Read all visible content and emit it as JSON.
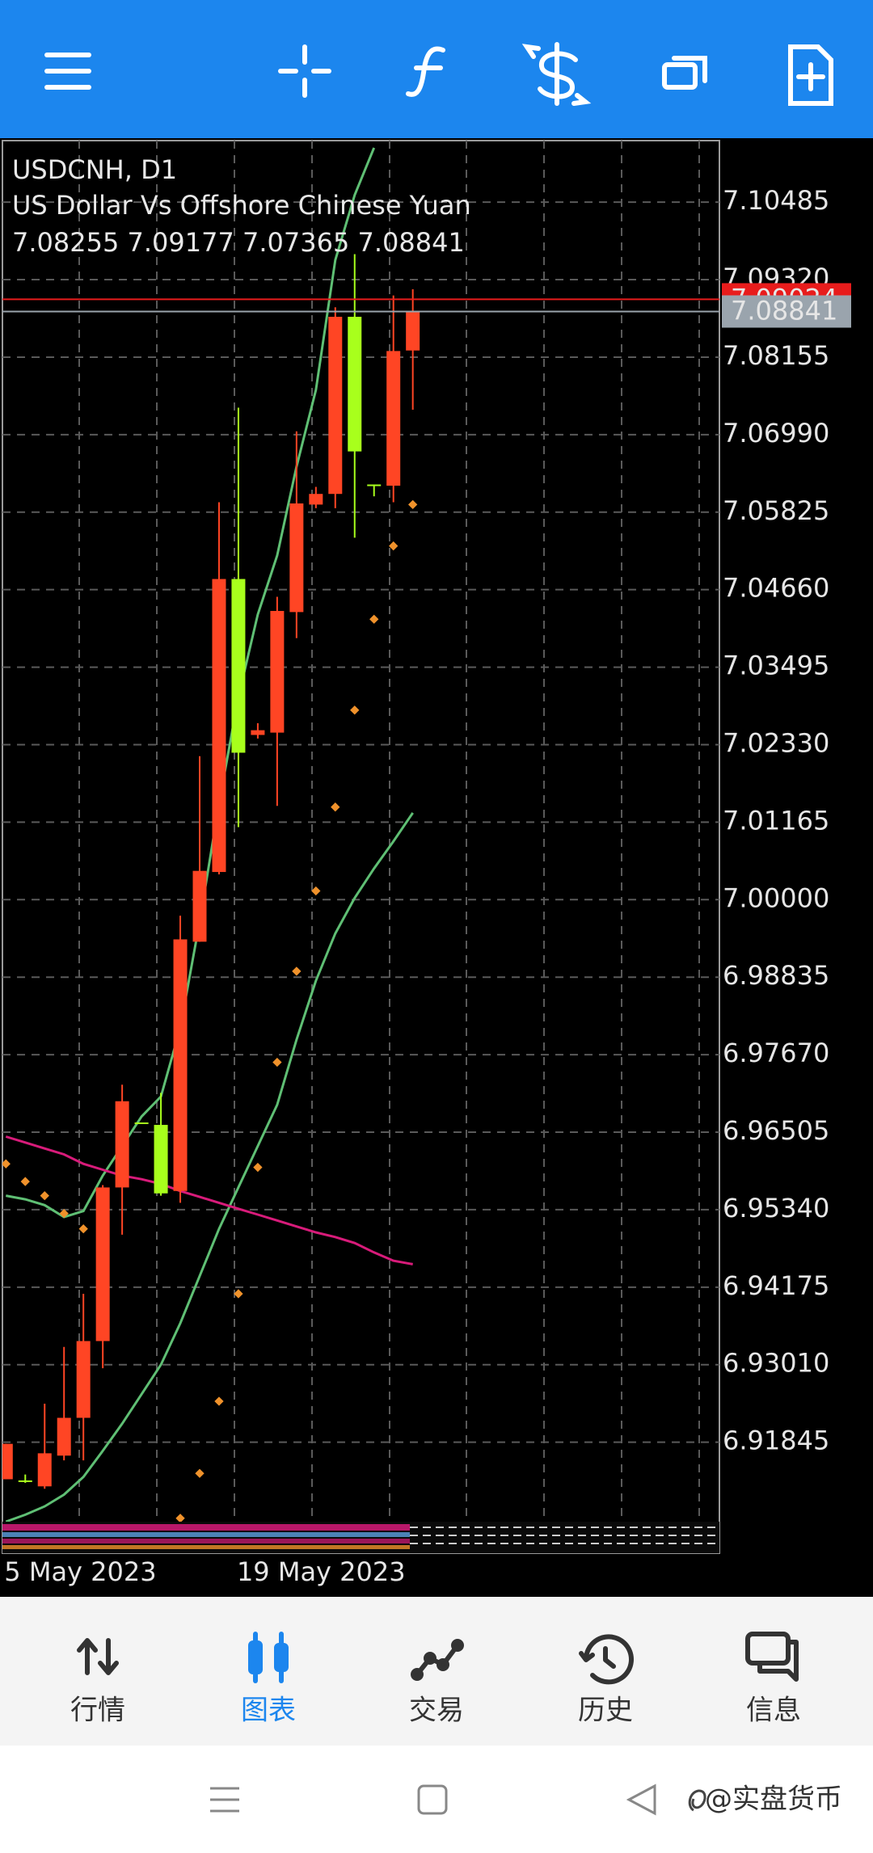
{
  "chart_data": {
    "type": "candlestick",
    "title": "USDCNH, D1",
    "subtitle": "US Dollar Vs Offshore Chinese Yuan",
    "ohlc_label": "7.08255 7.09177 7.07365 7.08841",
    "categories": [
      "5 May 2023",
      null,
      null,
      null,
      null,
      null,
      null,
      null,
      null,
      null,
      null,
      null,
      "19 May 2023",
      null,
      null,
      null,
      null,
      null,
      null,
      null,
      null,
      null
    ],
    "open": [
      6.91288,
      6.9127,
      6.91181,
      6.91643,
      6.92211,
      6.93365,
      6.95674,
      6.96651,
      6.96615,
      6.95621,
      6.99368,
      7.00416,
      7.0482,
      7.02476,
      7.02511,
      7.04323,
      7.05939,
      7.06099,
      7.08762,
      7.06241,
      7.06223,
      7.08255
    ],
    "high": [
      6.9182,
      6.91359,
      6.92424,
      6.93277,
      6.94076,
      6.9571,
      6.97219,
      6.96651,
      6.97095,
      6.99759,
      7.02156,
      7.05974,
      7.07395,
      7.02653,
      7.04553,
      7.0704,
      7.06205,
      7.08904,
      7.09704,
      7.06241,
      7.09082,
      7.09177
    ],
    "low": [
      6.91288,
      6.91234,
      6.91145,
      6.91572,
      6.91572,
      6.92957,
      6.94964,
      6.96633,
      6.9555,
      6.95443,
      6.99368,
      7.0038,
      7.0109,
      7.02422,
      7.0141,
      7.03932,
      7.05885,
      7.05885,
      7.05441,
      7.06063,
      7.05974,
      7.07365
    ],
    "close": [
      6.9182,
      6.9126,
      6.91678,
      6.92211,
      6.93365,
      6.95674,
      6.9697,
      6.96633,
      6.95585,
      6.99403,
      7.00433,
      7.0482,
      7.02209,
      7.02547,
      7.0434,
      7.05956,
      7.06099,
      7.08762,
      7.06738,
      7.06223,
      7.08247,
      7.08841
    ],
    "up_color": "#ff4524",
    "down_color": "#a8ff1c",
    "lines": [
      {
        "color": "#5fbf74",
        "values": [
          6.9555,
          6.95496,
          6.95408,
          6.9523,
          6.95319,
          6.95852,
          6.96296,
          6.9674,
          6.97041,
          6.98072,
          6.9967,
          7.01446,
          7.03044,
          7.04287,
          7.05175,
          7.06507,
          7.07661,
          7.09615,
          7.10592,
          7.11302,
          null,
          null
        ]
      },
      {
        "color": "#5fbf74",
        "values": [
          6.9065,
          6.90755,
          6.90879,
          6.91057,
          6.91323,
          6.91714,
          6.92122,
          6.92566,
          6.9301,
          6.93632,
          6.94342,
          6.95052,
          6.95674,
          6.96296,
          6.96917,
          6.97894,
          6.98782,
          6.99492,
          7.00025,
          7.00469,
          7.00877,
          7.01304
        ]
      },
      {
        "color": "#d81b7a",
        "values": [
          6.96438,
          6.96349,
          6.9626,
          6.96171,
          6.96029,
          6.9594,
          6.95852,
          6.95798,
          6.95727,
          6.95621,
          6.95532,
          6.95443,
          6.95354,
          6.95266,
          6.95177,
          6.95088,
          6.94999,
          6.94928,
          6.94839,
          6.94697,
          6.94573,
          6.9452
        ]
      }
    ],
    "dots": {
      "color": "#f0922b",
      "values": [
        6.96029,
        6.95763,
        6.9555,
        6.95283,
        6.95052,
        null,
        null,
        null,
        null,
        6.90701,
        6.91376,
        6.9246,
        6.94076,
        6.95976,
        6.97556,
        6.98924,
        7.00131,
        7.01392,
        7.02849,
        7.04216,
        7.05317,
        7.05939
      ]
    },
    "ylim": [
      6.9065,
      7.1141
    ],
    "yticks": [
      7.10485,
      {
        "value": 7.0932,
        "label": "7.09320"
      },
      7.08155,
      {
        "value": 7.0699,
        "label": "7.06990"
      },
      7.05825,
      {
        "value": 7.0466,
        "label": "7.04660"
      },
      7.03495,
      {
        "value": 7.0233,
        "label": "7.02330"
      },
      7.01165,
      {
        "value": 7.0,
        "label": "7.00000"
      },
      6.98835,
      {
        "value": 6.9767,
        "label": "6.97670"
      },
      6.96505,
      {
        "value": 6.9534,
        "label": "6.95340"
      },
      6.94175,
      {
        "value": 6.9301,
        "label": "6.93010"
      },
      6.91845
    ],
    "grid": true,
    "price_lines": [
      {
        "value": 7.09024,
        "color": "#e81c1c"
      },
      {
        "value": 7.08841,
        "color": "#9aa4ad"
      }
    ]
  },
  "nav": {
    "items": [
      "行情",
      "图表",
      "交易",
      "历史",
      "信息"
    ],
    "active": 1
  },
  "watermark": "@实盘货币"
}
